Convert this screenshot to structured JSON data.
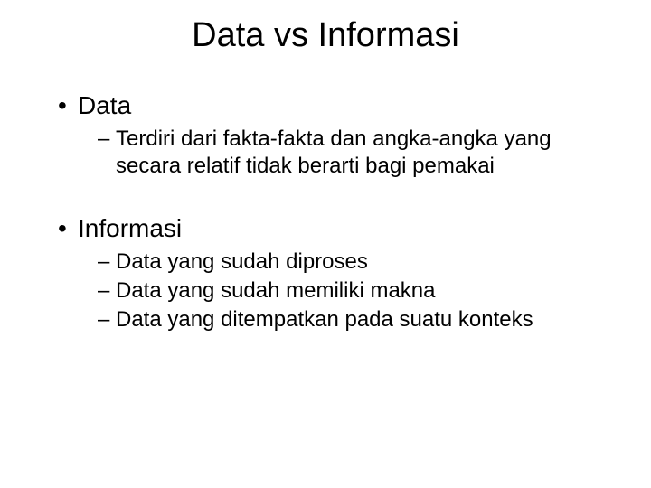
{
  "title": "Data vs Informasi",
  "sections": [
    {
      "heading": "Data",
      "items": [
        "Terdiri dari fakta-fakta dan angka-angka yang secara relatif tidak berarti bagi pemakai"
      ]
    },
    {
      "heading": "Informasi",
      "items": [
        "Data yang sudah diproses",
        "Data yang sudah memiliki makna",
        "Data yang ditempatkan pada suatu konteks"
      ]
    }
  ],
  "style": {
    "background_color": "#ffffff",
    "text_color": "#000000",
    "title_fontsize": 38,
    "level1_fontsize": 28,
    "level2_fontsize": 24,
    "font_family": "Arial"
  }
}
